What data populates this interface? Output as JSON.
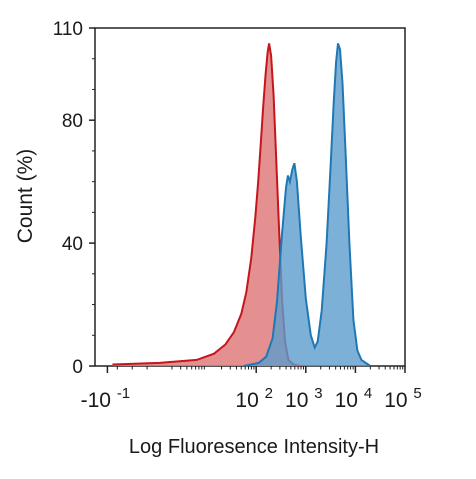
{
  "chart_data": {
    "type": "area",
    "title": "",
    "xlabel": "Log Fluoresence Intensity-H",
    "ylabel": "Count  (%)",
    "x_scale": "log",
    "ylim": [
      0,
      110
    ],
    "y_ticks": [
      "0",
      "40",
      "80",
      "110"
    ],
    "x_ticks": [
      {
        "base": "-10",
        "exp": "-1"
      },
      {
        "base": "10",
        "exp": "2"
      },
      {
        "base": "10",
        "exp": "3"
      },
      {
        "base": "10",
        "exp": "4"
      },
      {
        "base": "10",
        "exp": "5"
      }
    ],
    "grid": false,
    "series": [
      {
        "color_fill": "#e07d7d",
        "color_line": "#c4161c",
        "points": [
          [
            -0.9,
            0.5
          ],
          [
            0.05,
            1
          ],
          [
            0.8,
            2
          ],
          [
            1.15,
            4
          ],
          [
            1.38,
            7
          ],
          [
            1.55,
            11
          ],
          [
            1.7,
            17
          ],
          [
            1.8,
            24
          ],
          [
            1.9,
            35
          ],
          [
            1.98,
            48
          ],
          [
            2.04,
            60
          ],
          [
            2.09,
            72
          ],
          [
            2.14,
            84
          ],
          [
            2.19,
            95
          ],
          [
            2.23,
            102
          ],
          [
            2.26,
            105
          ],
          [
            2.3,
            101
          ],
          [
            2.35,
            88
          ],
          [
            2.41,
            65
          ],
          [
            2.46,
            45
          ],
          [
            2.52,
            22
          ],
          [
            2.58,
            8
          ],
          [
            2.65,
            2
          ],
          [
            2.75,
            0.5
          ],
          [
            2.9,
            0
          ]
        ]
      },
      {
        "color_fill": "#5d9ccc",
        "color_line": "#1f78b4",
        "points": [
          [
            1.75,
            0
          ],
          [
            2.05,
            1
          ],
          [
            2.2,
            3
          ],
          [
            2.33,
            9
          ],
          [
            2.42,
            21
          ],
          [
            2.52,
            43
          ],
          [
            2.6,
            58
          ],
          [
            2.64,
            62
          ],
          [
            2.68,
            60
          ],
          [
            2.73,
            64
          ],
          [
            2.77,
            66
          ],
          [
            2.82,
            60
          ],
          [
            2.9,
            42
          ],
          [
            3.0,
            22
          ],
          [
            3.1,
            10
          ],
          [
            3.18,
            6
          ],
          [
            3.24,
            8
          ],
          [
            3.32,
            18
          ],
          [
            3.42,
            40
          ],
          [
            3.5,
            65
          ],
          [
            3.56,
            85
          ],
          [
            3.61,
            99
          ],
          [
            3.65,
            105
          ],
          [
            3.69,
            103
          ],
          [
            3.74,
            92
          ],
          [
            3.8,
            70
          ],
          [
            3.88,
            40
          ],
          [
            3.96,
            15
          ],
          [
            4.04,
            5
          ],
          [
            4.12,
            2
          ],
          [
            4.3,
            0
          ]
        ]
      }
    ]
  }
}
